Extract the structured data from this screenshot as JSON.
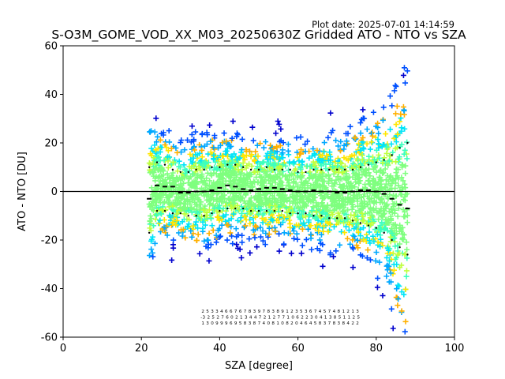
{
  "chart_data": {
    "type": "scatter",
    "title": "S-O3M_GOME_VOD_XX_M03_20250630Z Gridded ATO - NTO vs SZA",
    "plot_date": "Plot date: 2025-07-01 14:14:59",
    "xlabel": "SZA [degree]",
    "ylabel": "ATO - NTO [DU]",
    "xlim": [
      0,
      100
    ],
    "ylim": [
      -60,
      60
    ],
    "xticks": [
      "0",
      "20",
      "40",
      "60",
      "80",
      "100"
    ],
    "yticks": [
      "-60",
      "-40",
      "-20",
      "0",
      "20",
      "40",
      "60"
    ],
    "grid": false,
    "zero_line": 0,
    "marker": "+",
    "colormap_levels": [
      "#0000cd",
      "#0050ff",
      "#00a8ff",
      "#00e4f8",
      "#3cffbe",
      "#7fff7f",
      "#beff3c",
      "#ffe600",
      "#ffb000"
    ],
    "sza_range": [
      22,
      88
    ],
    "bin_means": [
      [
        22,
        -3
      ],
      [
        24,
        2.5
      ],
      [
        26,
        2
      ],
      [
        28,
        2
      ],
      [
        30,
        -0.5
      ],
      [
        32,
        -0.5
      ],
      [
        34,
        0
      ],
      [
        36,
        0
      ],
      [
        38,
        0.5
      ],
      [
        40,
        1.5
      ],
      [
        42,
        2.5
      ],
      [
        44,
        2
      ],
      [
        46,
        1
      ],
      [
        48,
        0.5
      ],
      [
        50,
        1
      ],
      [
        52,
        1.5
      ],
      [
        54,
        1.5
      ],
      [
        56,
        1
      ],
      [
        58,
        0.5
      ],
      [
        60,
        0
      ],
      [
        62,
        0
      ],
      [
        64,
        0.5
      ],
      [
        66,
        0
      ],
      [
        68,
        0
      ],
      [
        70,
        -0.5
      ],
      [
        72,
        -0.5
      ],
      [
        74,
        0
      ],
      [
        76,
        0.5
      ],
      [
        78,
        0.5
      ],
      [
        80,
        0
      ],
      [
        82,
        -1
      ],
      [
        84,
        -3
      ],
      [
        86,
        -5.5
      ],
      [
        88,
        -7
      ]
    ],
    "bin_upper": [
      [
        22,
        10
      ],
      [
        24,
        12
      ],
      [
        26,
        11
      ],
      [
        28,
        9
      ],
      [
        30,
        8
      ],
      [
        32,
        8
      ],
      [
        34,
        9
      ],
      [
        36,
        9
      ],
      [
        38,
        10
      ],
      [
        40,
        10
      ],
      [
        42,
        11
      ],
      [
        44,
        11
      ],
      [
        46,
        10
      ],
      [
        48,
        9
      ],
      [
        50,
        9
      ],
      [
        52,
        10
      ],
      [
        54,
        9
      ],
      [
        56,
        9
      ],
      [
        58,
        9
      ],
      [
        60,
        8
      ],
      [
        62,
        8
      ],
      [
        64,
        9
      ],
      [
        66,
        9
      ],
      [
        68,
        9
      ],
      [
        70,
        9
      ],
      [
        72,
        9
      ],
      [
        74,
        9
      ],
      [
        76,
        10
      ],
      [
        78,
        11
      ],
      [
        80,
        12
      ],
      [
        82,
        13
      ],
      [
        84,
        15
      ],
      [
        86,
        18
      ],
      [
        88,
        20
      ]
    ],
    "bin_lower": [
      [
        22,
        -17
      ],
      [
        24,
        -8
      ],
      [
        26,
        -8
      ],
      [
        28,
        -9
      ],
      [
        30,
        -9
      ],
      [
        32,
        -10
      ],
      [
        34,
        -10
      ],
      [
        36,
        -10
      ],
      [
        38,
        -9
      ],
      [
        40,
        -8
      ],
      [
        42,
        -7
      ],
      [
        44,
        -7
      ],
      [
        46,
        -7
      ],
      [
        48,
        -8
      ],
      [
        50,
        -8
      ],
      [
        52,
        -8
      ],
      [
        54,
        -8
      ],
      [
        56,
        -8
      ],
      [
        58,
        -9
      ],
      [
        60,
        -9
      ],
      [
        62,
        -9
      ],
      [
        64,
        -10
      ],
      [
        66,
        -10
      ],
      [
        68,
        -11
      ],
      [
        70,
        -11
      ],
      [
        72,
        -11
      ],
      [
        74,
        -12
      ],
      [
        76,
        -13
      ],
      [
        78,
        -14
      ],
      [
        80,
        -15
      ],
      [
        82,
        -17
      ],
      [
        84,
        -20
      ],
      [
        86,
        -23
      ],
      [
        88,
        -26
      ]
    ],
    "bin_count_rows": [
      "2 5 3 3 4 6 6 7 6 7 8 3 9 7 8 3 8 9 1 2 3 5 3 6 7 4 5 7 4 8 1 2 1 3",
      "-3 2 5 2 7 6 0 2 1 3 4 4 7 2 1 2 7 7 1 0 6 2 2 3 0 4 1 3 8 5 1 1 2 5",
      "1 3 0 9 9 9 6 9 5 8 3 8 7 4 0 8 1 0 8 2 0 4 6 4 5 8 3 7 8 3 8 4 2 2"
    ]
  }
}
